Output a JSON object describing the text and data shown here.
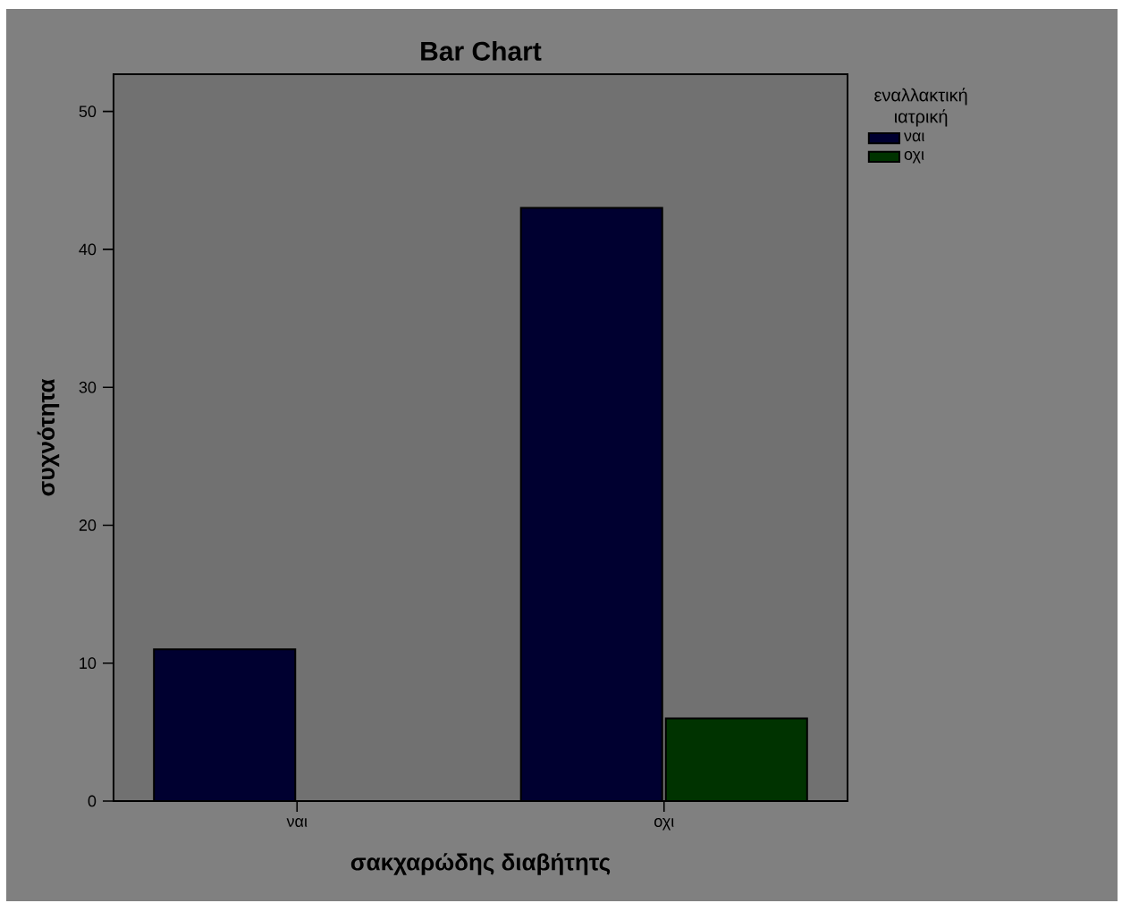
{
  "chart_data": {
    "type": "bar",
    "title": "Bar Chart",
    "xlabel": "σακχαρώδης  διαβήτητς",
    "ylabel": "συχνότητα",
    "legend_title": "εναλλακτική ιατρική",
    "categories": [
      "ναι",
      "οχι"
    ],
    "series": [
      {
        "name": "ναι",
        "color": "#000030",
        "values": [
          11,
          43
        ]
      },
      {
        "name": "οχι",
        "color": "#003300",
        "values": [
          null,
          6
        ]
      }
    ],
    "ylim": [
      0,
      52.7
    ],
    "yticks": [
      0,
      10,
      20,
      30,
      40,
      50
    ],
    "grid": false,
    "legend": "right"
  }
}
